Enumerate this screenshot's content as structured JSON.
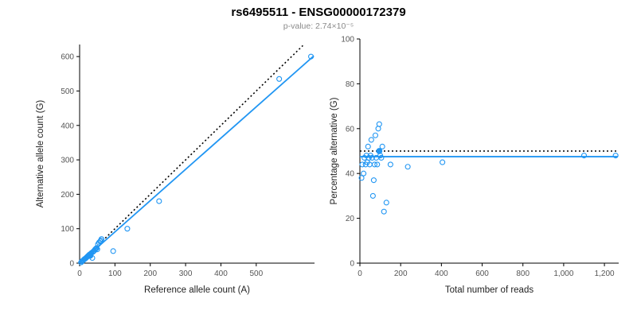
{
  "header": {
    "title": "rs6495511 - ENSG00000172379",
    "subtitle": "p-value: 2.74×10⁻⁵"
  },
  "colors": {
    "accent": "#2196f3",
    "identity_line": "#000000",
    "axis": "#000000",
    "tick_text": "#555555",
    "label_text": "#222222"
  },
  "chart_data": [
    {
      "type": "scatter",
      "xlabel": "Reference allele count (A)",
      "ylabel": "Alternative allele count (G)",
      "xlim": [
        0,
        665
      ],
      "ylim": [
        0,
        635
      ],
      "xticks": [
        0,
        100,
        200,
        300,
        400,
        500
      ],
      "xtick_labels": [
        "0",
        "100",
        "200",
        "300",
        "400",
        "500"
      ],
      "yticks": [
        0,
        100,
        200,
        300,
        400,
        500,
        600
      ],
      "ytick_labels": [
        "0",
        "100",
        "200",
        "300",
        "400",
        "500",
        "600"
      ],
      "grid": false,
      "legend": "none",
      "lines": [
        {
          "name": "identity-line",
          "x1": 0,
          "y1": 0,
          "x2": 632,
          "y2": 632,
          "color": "#000000",
          "dash": "2,3",
          "width": 1.6
        },
        {
          "name": "regression-line",
          "x1": 0,
          "y1": 0,
          "x2": 663,
          "y2": 602,
          "color": "#2196f3",
          "dash": "",
          "width": 1.8
        }
      ],
      "points": [
        [
          4,
          2
        ],
        [
          6,
          5
        ],
        [
          8,
          6
        ],
        [
          10,
          8
        ],
        [
          12,
          10
        ],
        [
          14,
          12
        ],
        [
          16,
          13
        ],
        [
          18,
          15
        ],
        [
          20,
          17
        ],
        [
          22,
          19
        ],
        [
          24,
          21
        ],
        [
          26,
          23
        ],
        [
          28,
          25
        ],
        [
          30,
          26
        ],
        [
          32,
          28
        ],
        [
          34,
          30
        ],
        [
          36,
          15
        ],
        [
          38,
          33
        ],
        [
          40,
          35
        ],
        [
          42,
          37
        ],
        [
          44,
          40
        ],
        [
          46,
          42
        ],
        [
          48,
          44
        ],
        [
          50,
          40
        ],
        [
          52,
          55
        ],
        [
          55,
          60
        ],
        [
          58,
          63
        ],
        [
          60,
          66
        ],
        [
          62,
          70
        ],
        [
          95,
          35
        ],
        [
          135,
          100
        ],
        [
          225,
          180
        ],
        [
          565,
          535
        ],
        [
          655,
          600
        ]
      ],
      "filled_points": [
        [
          30,
          22
        ]
      ]
    },
    {
      "type": "scatter",
      "xlabel": "Total number of reads",
      "ylabel": "Percentage alternative (G)",
      "xlim": [
        0,
        1270
      ],
      "ylim": [
        0,
        100
      ],
      "xticks": [
        0,
        200,
        400,
        600,
        800,
        1000,
        1200
      ],
      "xtick_labels": [
        "0",
        "200",
        "400",
        "600",
        "800",
        "1,000",
        "1,200"
      ],
      "yticks": [
        0,
        20,
        40,
        60,
        80,
        100
      ],
      "ytick_labels": [
        "0",
        "20",
        "40",
        "60",
        "80",
        "100"
      ],
      "grid": false,
      "legend": "none",
      "lines": [
        {
          "name": "expected-line",
          "x1": 0,
          "y1": 50,
          "x2": 1265,
          "y2": 50,
          "color": "#000000",
          "dash": "2,3",
          "width": 1.6
        },
        {
          "name": "mean-line",
          "x1": 0,
          "y1": 47.5,
          "x2": 1265,
          "y2": 47.5,
          "color": "#2196f3",
          "dash": "",
          "width": 1.8
        }
      ],
      "points": [
        [
          8,
          38
        ],
        [
          12,
          44
        ],
        [
          18,
          40
        ],
        [
          22,
          47
        ],
        [
          28,
          44
        ],
        [
          32,
          48
        ],
        [
          36,
          45
        ],
        [
          40,
          52
        ],
        [
          44,
          47
        ],
        [
          48,
          44
        ],
        [
          52,
          48
        ],
        [
          56,
          55
        ],
        [
          60,
          47
        ],
        [
          64,
          30
        ],
        [
          68,
          37
        ],
        [
          72,
          44
        ],
        [
          76,
          57
        ],
        [
          80,
          47
        ],
        [
          85,
          44
        ],
        [
          90,
          60
        ],
        [
          95,
          62
        ],
        [
          100,
          48
        ],
        [
          105,
          47
        ],
        [
          110,
          52
        ],
        [
          118,
          23
        ],
        [
          130,
          27
        ],
        [
          150,
          44
        ],
        [
          235,
          43
        ],
        [
          405,
          45
        ],
        [
          1100,
          48
        ],
        [
          1255,
          48
        ]
      ],
      "filled_points": [
        [
          95,
          50
        ]
      ]
    }
  ]
}
